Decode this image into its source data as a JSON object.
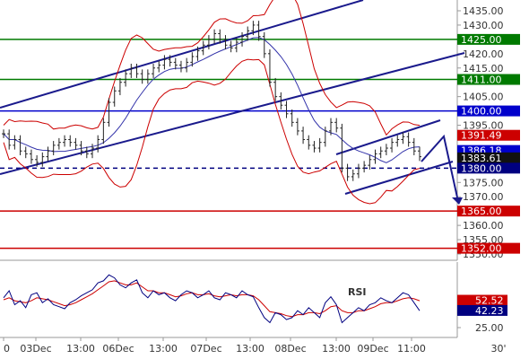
{
  "chart_data": [
    {
      "type": "line",
      "panel": "price",
      "title": "",
      "xlabel": "",
      "ylabel": "",
      "ylim": [
        1348,
        1438
      ],
      "yticks": [
        1435,
        1430,
        1425,
        1420,
        1415,
        1410,
        1405,
        1400,
        1395,
        1390,
        1385,
        1380,
        1375,
        1370,
        1365,
        1360,
        1355,
        1350
      ],
      "ytick_labels_visible": [
        "1435.00",
        "1430.00",
        "1420.00",
        "1415.00",
        "1405.00",
        "1395.00",
        "1375.00",
        "1370.00",
        "1360.00",
        "1355.00",
        "1350.00"
      ],
      "xticks": [
        "0",
        "03Dec",
        "13:00",
        "06Dec",
        "13:00",
        "07Dec",
        "13:00",
        "08Dec",
        "13:00",
        "09Dec",
        "11:00",
        "30'"
      ],
      "grid": false,
      "levels": [
        {
          "value": 1425.0,
          "label": "1425.00",
          "color": "#007a00"
        },
        {
          "value": 1411.0,
          "label": "1411.00",
          "color": "#007a00"
        },
        {
          "value": 1400.0,
          "label": "1400.00",
          "color": "#0000cc"
        },
        {
          "value": 1391.49,
          "label": "1391.49",
          "color": "#cc0000"
        },
        {
          "value": 1386.18,
          "label": "1386.18",
          "color": "#0000cc"
        },
        {
          "value": 1383.61,
          "label": "1383.61",
          "color": "#111111"
        },
        {
          "value": 1380.0,
          "label": "1380.00",
          "color": "#000080",
          "dashed": true
        },
        {
          "value": 1365.0,
          "label": "1365.00",
          "color": "#cc0000"
        },
        {
          "value": 1352.0,
          "label": "1352.00",
          "color": "#cc0000"
        }
      ],
      "price_series": [
        1392,
        1388,
        1390,
        1386,
        1385,
        1383,
        1382,
        1384,
        1386,
        1388,
        1389,
        1390,
        1389,
        1388,
        1386,
        1385,
        1387,
        1390,
        1396,
        1403,
        1407,
        1410,
        1413,
        1415,
        1413,
        1411,
        1413,
        1415,
        1416,
        1418,
        1417,
        1416,
        1415,
        1417,
        1419,
        1421,
        1423,
        1425,
        1427,
        1425,
        1423,
        1422,
        1424,
        1426,
        1428,
        1430,
        1426,
        1420,
        1410,
        1405,
        1402,
        1399,
        1396,
        1393,
        1390,
        1388,
        1387,
        1389,
        1393,
        1396,
        1394,
        1380,
        1377,
        1378,
        1380,
        1381,
        1383,
        1385,
        1386,
        1387,
        1389,
        1390,
        1391,
        1389,
        1386,
        1384
      ],
      "rsi_panel": {
        "title": "RSI",
        "ylim": [
          20,
          90
        ],
        "yticks": [
          25.0
        ],
        "ytick_labels_visible": [
          "25.00"
        ],
        "labels": [
          {
            "value": 52.52,
            "label": "52.52",
            "color": "#cc0000"
          },
          {
            "value": 42.23,
            "label": "42.23",
            "color": "#000080"
          }
        ],
        "rsi_series": [
          55,
          62,
          48,
          52,
          45,
          58,
          60,
          50,
          54,
          48,
          46,
          44,
          50,
          53,
          57,
          60,
          63,
          70,
          72,
          78,
          75,
          68,
          65,
          70,
          73,
          60,
          55,
          62,
          58,
          60,
          55,
          52,
          58,
          62,
          60,
          55,
          58,
          62,
          55,
          53,
          60,
          58,
          55,
          62,
          58,
          56,
          45,
          35,
          30,
          40,
          38,
          33,
          35,
          42,
          38,
          45,
          40,
          35,
          50,
          56,
          48,
          30,
          35,
          40,
          45,
          42,
          48,
          50,
          55,
          52,
          50,
          55,
          60,
          58,
          50,
          42
        ],
        "signal_series": [
          53,
          55,
          52,
          51,
          50,
          52,
          55,
          54,
          53,
          51,
          49,
          47,
          48,
          50,
          53,
          56,
          59,
          63,
          67,
          71,
          72,
          70,
          68,
          68,
          70,
          66,
          62,
          62,
          60,
          60,
          58,
          56,
          57,
          59,
          60,
          58,
          58,
          59,
          57,
          56,
          57,
          58,
          57,
          58,
          58,
          57,
          53,
          47,
          41,
          40,
          39,
          37,
          36,
          38,
          38,
          40,
          40,
          39,
          42,
          46,
          47,
          42,
          40,
          40,
          42,
          42,
          44,
          46,
          49,
          50,
          50,
          52,
          54,
          55,
          54,
          52
        ]
      }
    }
  ]
}
